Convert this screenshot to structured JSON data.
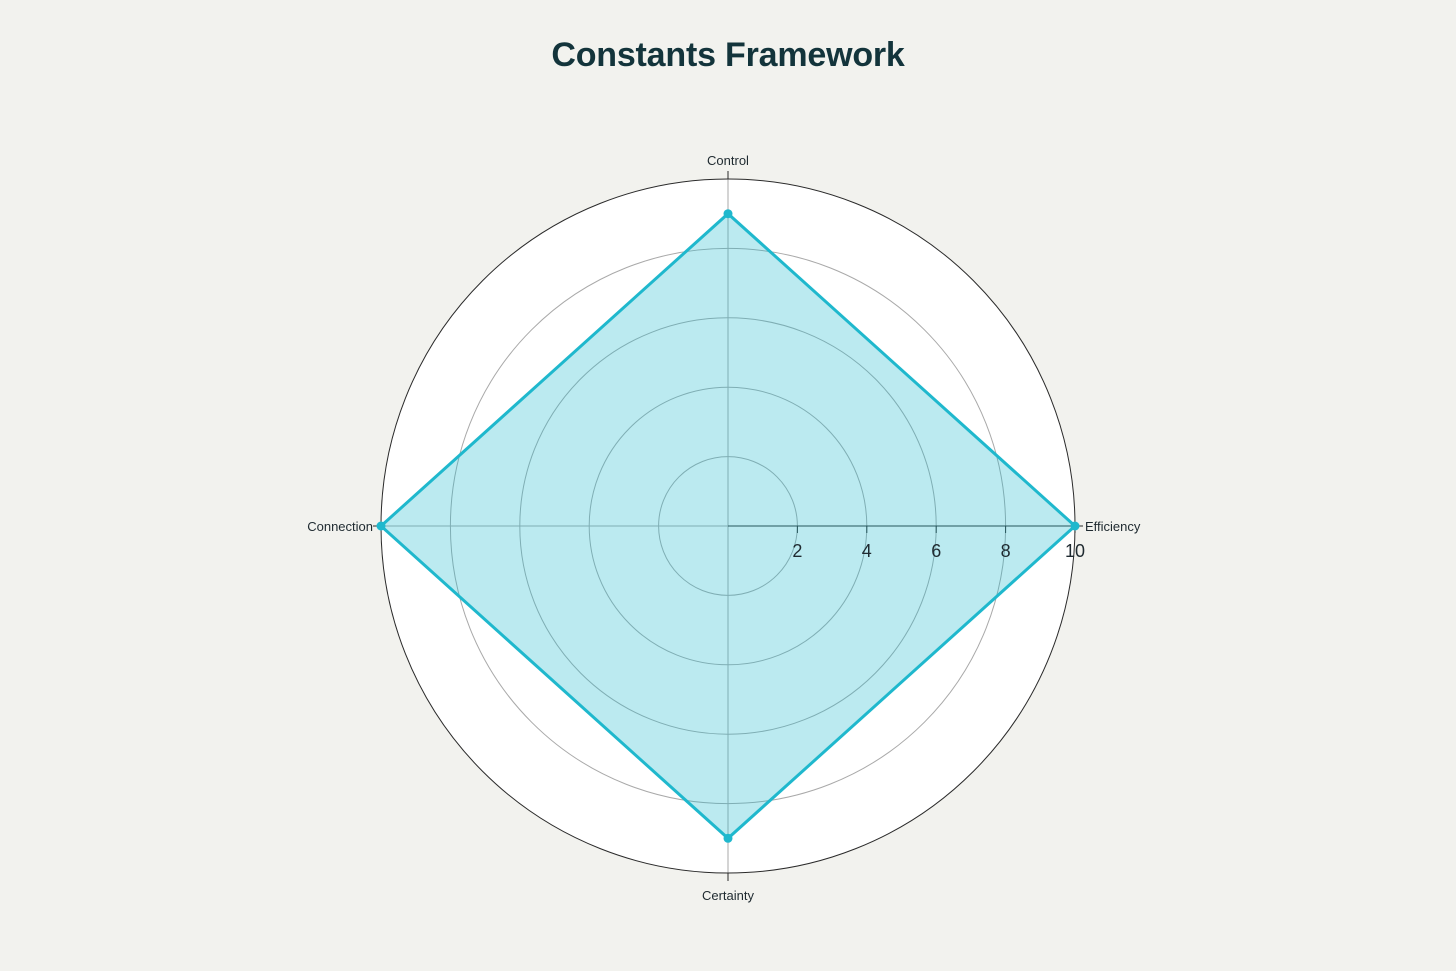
{
  "chart_data": {
    "type": "radar",
    "title": "Constants Framework",
    "axes": [
      "Efficiency",
      "Control",
      "Connection",
      "Certainty"
    ],
    "series": [
      {
        "name": "",
        "values": [
          10,
          9,
          10,
          9
        ]
      }
    ],
    "radial_range": [
      0,
      10
    ],
    "radial_ticks": [
      "2",
      "4",
      "6",
      "8",
      "10"
    ],
    "grid": true,
    "legend": "none",
    "colors": {
      "series_line": "#1fb8cd",
      "series_fill": "#1fb8cd",
      "background": "#f2f2ee",
      "plot_background": "#ffffff",
      "grid": "#a9a9a9",
      "outer_ring": "#2a2a2a",
      "title": "#13343b"
    }
  }
}
